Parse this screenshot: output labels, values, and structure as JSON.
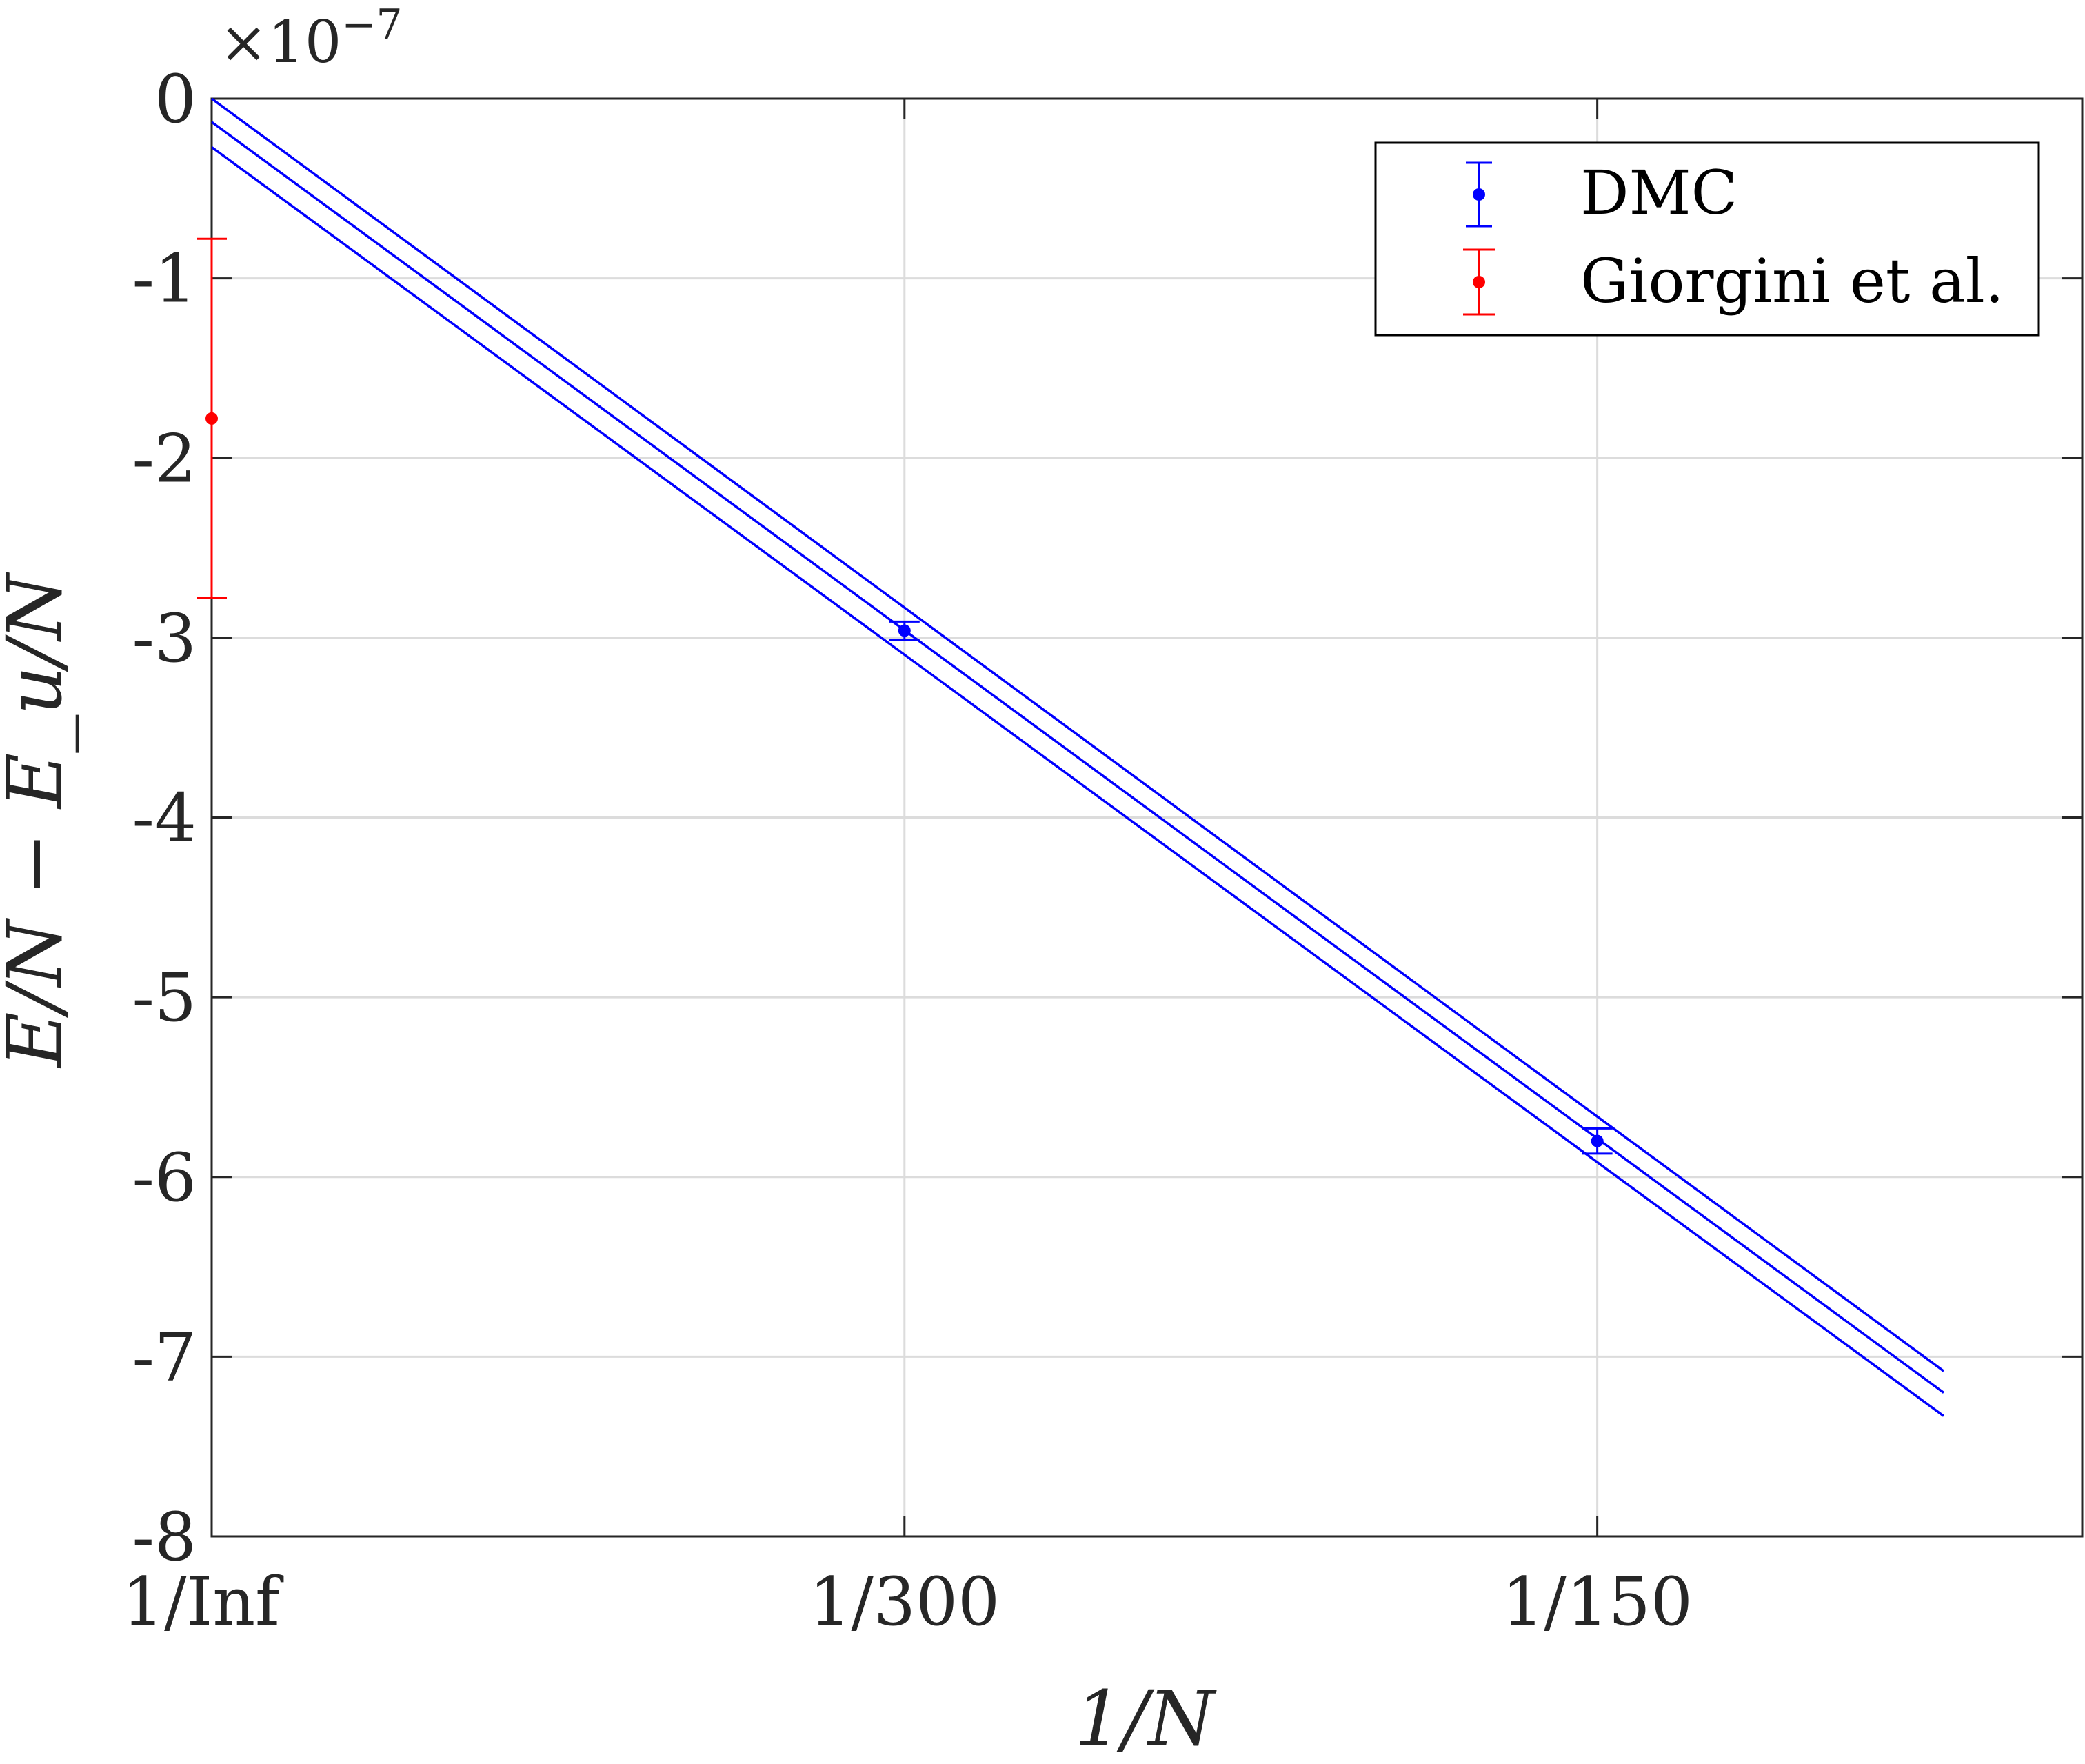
{
  "chart_data": {
    "type": "scatter",
    "xlabel": "1/N",
    "ylabel": "E/N − E_u/N",
    "y_exponent": "×10^−7",
    "y_exponent_base": "×10",
    "y_exponent_power": "−7",
    "xlim": [
      0,
      0.009
    ],
    "ylim": [
      -8,
      0
    ],
    "grid": true,
    "legend_position": "top-right",
    "x_ticks": [
      {
        "value": 0,
        "label": "1/Inf"
      },
      {
        "value": 0.0033333,
        "label": "1/300"
      },
      {
        "value": 0.0066667,
        "label": "1/150"
      }
    ],
    "y_ticks": [
      {
        "value": 0,
        "label": "0"
      },
      {
        "value": -1,
        "label": "-1"
      },
      {
        "value": -2,
        "label": "-2"
      },
      {
        "value": -3,
        "label": "-3"
      },
      {
        "value": -4,
        "label": "-4"
      },
      {
        "value": -5,
        "label": "-5"
      },
      {
        "value": -6,
        "label": "-6"
      },
      {
        "value": -7,
        "label": "-7"
      },
      {
        "value": -8,
        "label": "-8"
      }
    ],
    "series": [
      {
        "name": "DMC",
        "color": "#0000ff",
        "points": [
          {
            "x": 0.0033333,
            "y": -2.96,
            "err": 0.05
          },
          {
            "x": 0.0066667,
            "y": -5.8,
            "err": 0.07
          }
        ]
      },
      {
        "name": "Giorgini et al.",
        "color": "#ff0000",
        "points": [
          {
            "x": 0,
            "y": -1.78,
            "err": 1.0
          }
        ]
      }
    ],
    "fit_lines": [
      {
        "x": [
          0,
          0.0083333
        ],
        "y": [
          0.0,
          -7.08
        ]
      },
      {
        "x": [
          0,
          0.0083333
        ],
        "y": [
          -0.13,
          -7.2
        ]
      },
      {
        "x": [
          0,
          0.0083333
        ],
        "y": [
          -0.27,
          -7.33
        ]
      }
    ],
    "fit_color": "#0000ff"
  }
}
